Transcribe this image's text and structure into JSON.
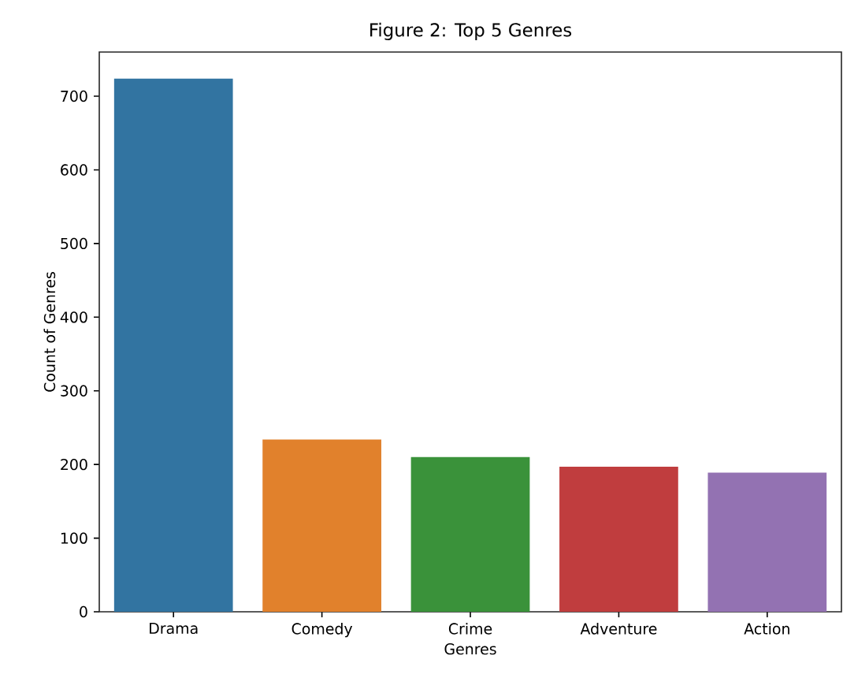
{
  "chart_data": {
    "type": "bar",
    "title": "Figure 2: Top 5 Genres",
    "xlabel": "Genres",
    "ylabel": "Count of Genres",
    "categories": [
      "Drama",
      "Comedy",
      "Crime",
      "Adventure",
      "Action"
    ],
    "values": [
      724,
      234,
      210,
      197,
      189
    ],
    "colors": [
      "#3274a1",
      "#e1812c",
      "#3a923a",
      "#c03d3e",
      "#9372b2"
    ],
    "ylim": [
      0,
      760
    ],
    "yticks": [
      0,
      100,
      200,
      300,
      400,
      500,
      600,
      700
    ]
  }
}
